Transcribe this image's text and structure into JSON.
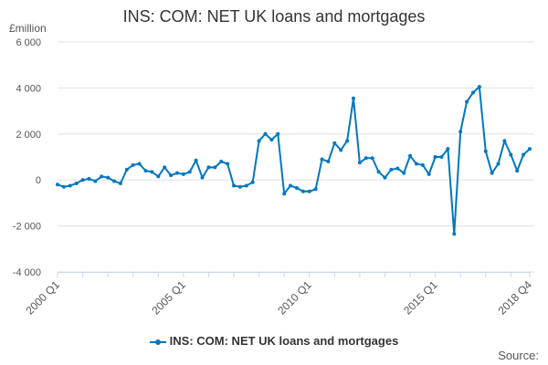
{
  "chart_data": {
    "type": "line",
    "title": "INS: COM: NET UK loans and mortgages",
    "ylabel": "£million",
    "xlabel": "",
    "ylim": [
      -4000,
      6000
    ],
    "yticks": [
      6000,
      4000,
      2000,
      0,
      -2000,
      -4000
    ],
    "ytick_labels": [
      "6 000",
      "4 000",
      "2 000",
      "0",
      "-2 000",
      "-4 000"
    ],
    "xtick_labels": [
      {
        "label": "2000 Q1",
        "index": 0
      },
      {
        "label": "2005 Q1",
        "index": 20
      },
      {
        "label": "2010 Q1",
        "index": 40
      },
      {
        "label": "2015 Q1",
        "index": 60
      },
      {
        "label": "2018 Q4",
        "index": 75
      }
    ],
    "grid": true,
    "legend_placement": "bottom",
    "color": "#0077c0",
    "series": [
      {
        "name": "INS: COM: NET UK loans and mortgages",
        "start": "2000 Q1",
        "end": "2018 Q4",
        "values": [
          -200,
          -300,
          -250,
          -150,
          0,
          50,
          -50,
          150,
          100,
          -50,
          -150,
          450,
          650,
          700,
          400,
          350,
          150,
          550,
          200,
          300,
          250,
          350,
          850,
          100,
          550,
          550,
          800,
          700,
          -250,
          -300,
          -250,
          -100,
          1700,
          2000,
          1750,
          2000,
          -600,
          -250,
          -350,
          -500,
          -500,
          -400,
          900,
          800,
          1600,
          1300,
          1700,
          3550,
          750,
          950,
          950,
          350,
          100,
          450,
          500,
          300,
          1050,
          700,
          650,
          250,
          1000,
          1000,
          1350,
          -2350,
          2100,
          3400,
          3800,
          4050,
          1250,
          300,
          700,
          1700,
          1100,
          400,
          1100,
          1350
        ]
      }
    ]
  },
  "source_label": "Source:"
}
